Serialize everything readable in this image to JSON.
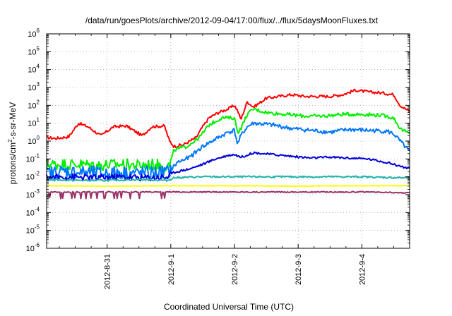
{
  "chart_data": {
    "type": "line",
    "title": "/data/run/goesPlots/archive/2012-09-04/17:00/flux/../flux/5daysMoonFluxes.txt",
    "xlabel": "Coordinated Universal Time (UTC)",
    "ylabel": "protons/cm2-s-sr-MeV",
    "y_scale": "log",
    "ylim_exponents": [
      -6,
      6
    ],
    "y_tick_base": "10",
    "y_tick_exponents": [
      "-6",
      "-5",
      "-4",
      "-3",
      "-2",
      "-1",
      "0",
      "1",
      "2",
      "3",
      "4",
      "5",
      "6"
    ],
    "x_range_days": [
      -1.95,
      3.75
    ],
    "x_ticks": [
      "2012-8-31",
      "2012-9-1",
      "2012-9-2",
      "2012-9-3",
      "2012-9-4"
    ],
    "x_tick_positions_days": [
      -1,
      0,
      1,
      2,
      3
    ],
    "grid": true,
    "legend": "none",
    "series": [
      {
        "color": "#ff0000",
        "noise": 0.08,
        "x": [
          -1.95,
          -1.8,
          -1.6,
          -1.45,
          -1.3,
          -1.1,
          -0.9,
          -0.7,
          -0.45,
          -0.3,
          -0.1,
          -0.02,
          0.05,
          0.2,
          0.4,
          0.5,
          0.6,
          0.75,
          0.9,
          1.0,
          1.05,
          1.1,
          1.2,
          1.3,
          1.5,
          1.7,
          1.9,
          2.1,
          2.3,
          2.5,
          2.7,
          2.9,
          3.1,
          3.3,
          3.5,
          3.6,
          3.75
        ],
        "y": [
          0.2,
          0.15,
          0.25,
          1.0,
          0.8,
          0.3,
          0.8,
          0.85,
          0.3,
          0.8,
          0.85,
          0.0,
          -0.3,
          -0.2,
          0.2,
          0.8,
          1.3,
          1.6,
          1.8,
          2.0,
          1.7,
          1.2,
          2.2,
          1.9,
          2.4,
          2.5,
          2.6,
          2.5,
          2.5,
          2.5,
          2.6,
          2.85,
          2.75,
          2.7,
          2.6,
          2.0,
          1.65
        ]
      },
      {
        "color": "#00ee00",
        "noise": 0.1,
        "x": [
          -1.95,
          -1.7,
          -1.4,
          -1.1,
          -0.8,
          -0.5,
          -0.2,
          -0.02,
          0.05,
          0.25,
          0.45,
          0.6,
          0.8,
          1.0,
          1.05,
          1.1,
          1.2,
          1.3,
          1.5,
          1.8,
          2.1,
          2.4,
          2.7,
          3.0,
          3.3,
          3.5,
          3.6,
          3.75
        ],
        "y": [
          -1.3,
          -1.3,
          -1.3,
          -1.35,
          -1.3,
          -1.35,
          -1.3,
          -1.4,
          -0.5,
          -0.3,
          0.2,
          0.9,
          1.3,
          1.3,
          0.5,
          0.7,
          1.5,
          1.8,
          1.6,
          1.5,
          1.4,
          1.4,
          1.5,
          1.5,
          1.45,
          1.3,
          0.7,
          0.4
        ]
      },
      {
        "color": "#0077ff",
        "noise": 0.12,
        "x": [
          -1.95,
          -1.7,
          -1.4,
          -1.1,
          -0.8,
          -0.5,
          -0.2,
          -0.02,
          0.1,
          0.3,
          0.5,
          0.7,
          0.9,
          1.0,
          1.05,
          1.1,
          1.2,
          1.3,
          1.6,
          1.9,
          2.2,
          2.5,
          2.8,
          3.1,
          3.4,
          3.5,
          3.6,
          3.75
        ],
        "y": [
          -1.8,
          -1.7,
          -1.75,
          -1.8,
          -1.75,
          -1.8,
          -1.75,
          -1.7,
          -1.2,
          -0.9,
          -0.3,
          0.1,
          0.5,
          0.6,
          -0.2,
          0.3,
          0.8,
          1.0,
          0.9,
          0.7,
          0.6,
          0.5,
          0.65,
          0.6,
          0.55,
          0.4,
          0.0,
          -0.6
        ]
      },
      {
        "color": "#0000dd",
        "noise": 0.06,
        "x": [
          -1.95,
          -1.6,
          -1.2,
          -0.8,
          -0.4,
          -0.05,
          0.05,
          0.3,
          0.5,
          0.7,
          0.9,
          1.0,
          1.1,
          1.3,
          1.6,
          1.9,
          2.2,
          2.5,
          2.8,
          3.1,
          3.4,
          3.6,
          3.75
        ],
        "y": [
          -2.05,
          -2.0,
          -2.05,
          -2.0,
          -2.05,
          -2.0,
          -1.75,
          -1.55,
          -1.3,
          -1.0,
          -0.8,
          -0.75,
          -0.9,
          -0.65,
          -0.75,
          -0.85,
          -0.95,
          -0.9,
          -0.95,
          -1.0,
          -1.2,
          -1.4,
          -1.55
        ]
      },
      {
        "color": "#20b2aa",
        "noise": 0.05,
        "x": [
          -1.95,
          -1.5,
          -1.0,
          -0.5,
          -0.05,
          0.05,
          0.5,
          1.0,
          1.5,
          2.0,
          2.5,
          3.0,
          3.5,
          3.75
        ],
        "y": [
          -2.15,
          -2.2,
          -2.2,
          -2.15,
          -2.2,
          -2.05,
          -2.0,
          -2.0,
          -2.0,
          -2.0,
          -2.0,
          -2.0,
          -2.05,
          -2.05
        ]
      },
      {
        "color": "#ffff00",
        "noise": 0.02,
        "x": [
          -1.95,
          -1.0,
          0.0,
          1.0,
          2.0,
          3.0,
          3.75
        ],
        "y": [
          -2.5,
          -2.52,
          -2.5,
          -2.5,
          -2.52,
          -2.5,
          -2.5
        ]
      },
      {
        "color": "#993366",
        "noise": 0.03,
        "x": [
          -1.95,
          -1.0,
          0.0,
          1.0,
          2.0,
          3.0,
          3.75
        ],
        "y": [
          -2.85,
          -2.85,
          -2.85,
          -2.85,
          -2.85,
          -2.85,
          -2.9
        ]
      }
    ]
  }
}
